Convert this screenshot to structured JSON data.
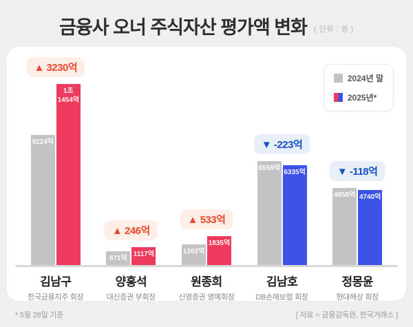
{
  "header": {
    "title": "금융사 오너 주식자산 평가액 변화",
    "unit": "( 단위 : 원 )"
  },
  "legend": {
    "items": [
      {
        "label": "2024년 말",
        "swatch": "gray"
      },
      {
        "label": "2025년*",
        "swatch": "split-red-blue"
      }
    ]
  },
  "chart_data": {
    "type": "bar",
    "title": "금융사 오너 주식자산 평가액 변화",
    "unit": "원 (억 단위 값)",
    "series_names": [
      "2024년 말",
      "2025년*"
    ],
    "groups": [
      {
        "name": "김남구",
        "role": "한국금융지주 회장",
        "prev_label": "8224억",
        "curr_label": "1조\n1454억",
        "prev_value_eok": 8224,
        "curr_value_eok": 11454,
        "change_label": "▲ 3230억",
        "direction": "up"
      },
      {
        "name": "양홍석",
        "role": "대신증권 부회장",
        "prev_label": "871억",
        "curr_label": "1117억",
        "prev_value_eok": 871,
        "curr_value_eok": 1117,
        "change_label": "▲ 246억",
        "direction": "up"
      },
      {
        "name": "원종희",
        "role": "신영증권 명예회장",
        "prev_label": "1302억",
        "curr_label": "1835억",
        "prev_value_eok": 1302,
        "curr_value_eok": 1835,
        "change_label": "▲ 533억",
        "direction": "up"
      },
      {
        "name": "김남호",
        "role": "DB손해보험 회장",
        "prev_label": "6558억",
        "curr_label": "6335억",
        "prev_value_eok": 6558,
        "curr_value_eok": 6335,
        "change_label": "▼ -223억",
        "direction": "down"
      },
      {
        "name": "정몽윤",
        "role": "현대해상 회장",
        "prev_label": "4858억",
        "curr_label": "4740억",
        "prev_value_eok": 4858,
        "curr_value_eok": 4740,
        "change_label": "▼ -118억",
        "direction": "down"
      }
    ],
    "colors": {
      "prev_bar": "#c3c3c6",
      "up_bar": "#ee3a5c",
      "down_bar": "#3d53e8",
      "badge_up_text": "#e8492e",
      "badge_up_bg": "#fdeee8",
      "badge_down_text": "#1352c4",
      "badge_down_bg": "#e9eff8"
    },
    "layout": {
      "grid": false,
      "legend_position": "top-right",
      "baseline": 0
    }
  },
  "footer": {
    "note": "* 5월 28일 기준",
    "source": "[ 자료 = 금융감독원, 한국거래소 ]"
  }
}
